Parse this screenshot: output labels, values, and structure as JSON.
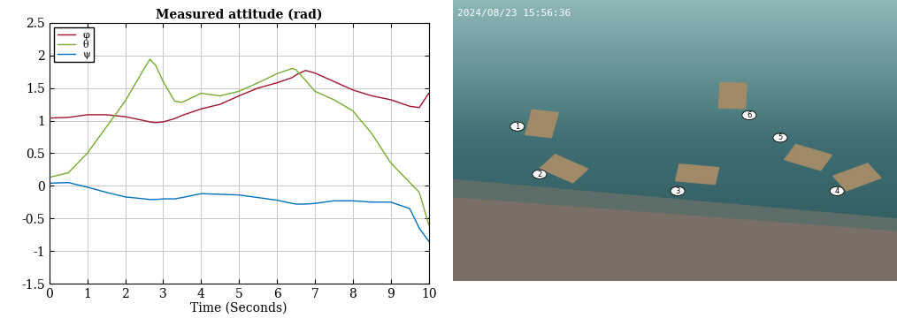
{
  "chart_data": {
    "type": "line",
    "title": "Measured attitude (rad)",
    "xlabel": "Time (Seconds)",
    "x": [
      0,
      0.5,
      1,
      1.5,
      2,
      2.5,
      2.65,
      2.8,
      3,
      3.3,
      3.5,
      4,
      4.5,
      5,
      5.5,
      6,
      6.4,
      6.5,
      6.75,
      7,
      7.5,
      8,
      8.5,
      9,
      9.5,
      9.75,
      10
    ],
    "series": [
      {
        "name": "φ",
        "color": "#a2142f",
        "values": [
          1.04,
          1.05,
          1.09,
          1.09,
          1.06,
          1.0,
          0.98,
          0.97,
          0.98,
          1.03,
          1.08,
          1.18,
          1.25,
          1.38,
          1.5,
          1.58,
          1.66,
          1.7,
          1.77,
          1.73,
          1.6,
          1.47,
          1.38,
          1.32,
          1.22,
          1.2,
          1.42
        ]
      },
      {
        "name": "θ",
        "color": "#77ac30",
        "values": [
          0.13,
          0.2,
          0.5,
          0.9,
          1.3,
          1.8,
          1.94,
          1.85,
          1.6,
          1.3,
          1.28,
          1.42,
          1.38,
          1.45,
          1.58,
          1.72,
          1.8,
          1.78,
          1.62,
          1.45,
          1.32,
          1.15,
          0.8,
          0.35,
          0.05,
          -0.1,
          -0.6
        ]
      },
      {
        "name": "ψ",
        "color": "#0072bd",
        "values": [
          0.04,
          0.05,
          -0.02,
          -0.1,
          -0.17,
          -0.2,
          -0.21,
          -0.21,
          -0.2,
          -0.2,
          -0.18,
          -0.12,
          -0.13,
          -0.14,
          -0.18,
          -0.22,
          -0.27,
          -0.28,
          -0.28,
          -0.27,
          -0.23,
          -0.23,
          -0.25,
          -0.25,
          -0.35,
          -0.65,
          -0.85
        ]
      }
    ],
    "xlim": [
      0,
      10
    ],
    "xticks": [
      0,
      1,
      2,
      3,
      4,
      5,
      6,
      7,
      8,
      9,
      10
    ],
    "ylim": [
      -1.5,
      2.5
    ],
    "yticks": [
      -1.5,
      -1,
      -0.5,
      0,
      0.5,
      1,
      1.5,
      2,
      2.5
    ],
    "grid": true,
    "legend": "upper left"
  },
  "photo": {
    "timestamp": "2024/08/23 15:56:36",
    "labels": [
      "1",
      "2",
      "3",
      "4",
      "5",
      "6"
    ]
  }
}
